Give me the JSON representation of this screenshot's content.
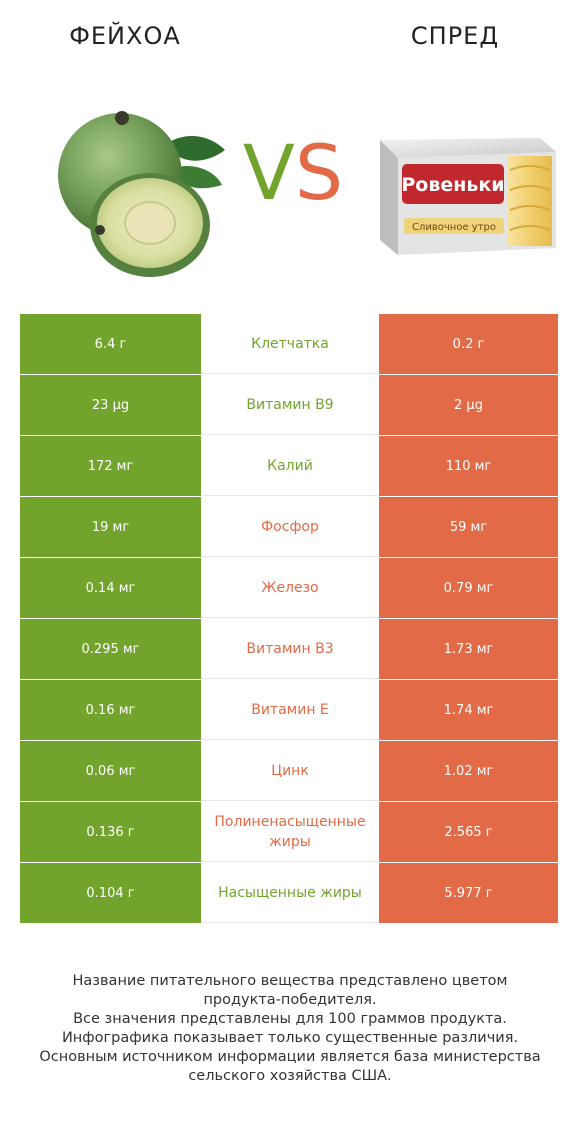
{
  "header": {
    "left_title": "ФЕЙХОА",
    "right_title": "СПРЕД",
    "vs_v": "V",
    "vs_s": "S"
  },
  "images": {
    "left": "feijoa-fruit",
    "right": "spread-package",
    "package_brand": "Ровеньки",
    "package_text": "Сливочное утро"
  },
  "colors": {
    "winner_left": "#72a42d",
    "winner_right": "#e26a47"
  },
  "rows": [
    {
      "left": "6.4 г",
      "label": "Клетчатка",
      "right": "0.2 г",
      "winner": "left"
    },
    {
      "left": "23 µg",
      "label": "Витамин B9",
      "right": "2 µg",
      "winner": "left"
    },
    {
      "left": "172 мг",
      "label": "Калий",
      "right": "110 мг",
      "winner": "left"
    },
    {
      "left": "19 мг",
      "label": "Фосфор",
      "right": "59 мг",
      "winner": "right"
    },
    {
      "left": "0.14 мг",
      "label": "Железо",
      "right": "0.79 мг",
      "winner": "right"
    },
    {
      "left": "0.295 мг",
      "label": "Витамин B3",
      "right": "1.73 мг",
      "winner": "right"
    },
    {
      "left": "0.16 мг",
      "label": "Витамин E",
      "right": "1.74 мг",
      "winner": "right"
    },
    {
      "left": "0.06 мг",
      "label": "Цинк",
      "right": "1.02 мг",
      "winner": "right"
    },
    {
      "left": "0.136 г",
      "label": "Полиненасыщенные жиры",
      "right": "2.565 г",
      "winner": "right"
    },
    {
      "left": "0.104 г",
      "label": "Насыщенные жиры",
      "right": "5.977 г",
      "winner": "left"
    }
  ],
  "footer": {
    "line1": "Название питательного вещества представлено цветом",
    "line2": "продукта-победителя.",
    "line3": "Все значения представлены для 100 граммов продукта.",
    "line4": "Инфографика показывает только существенные различия.",
    "line5": "Основным источником информации является база министерства",
    "line6": "сельского хозяйства США."
  }
}
